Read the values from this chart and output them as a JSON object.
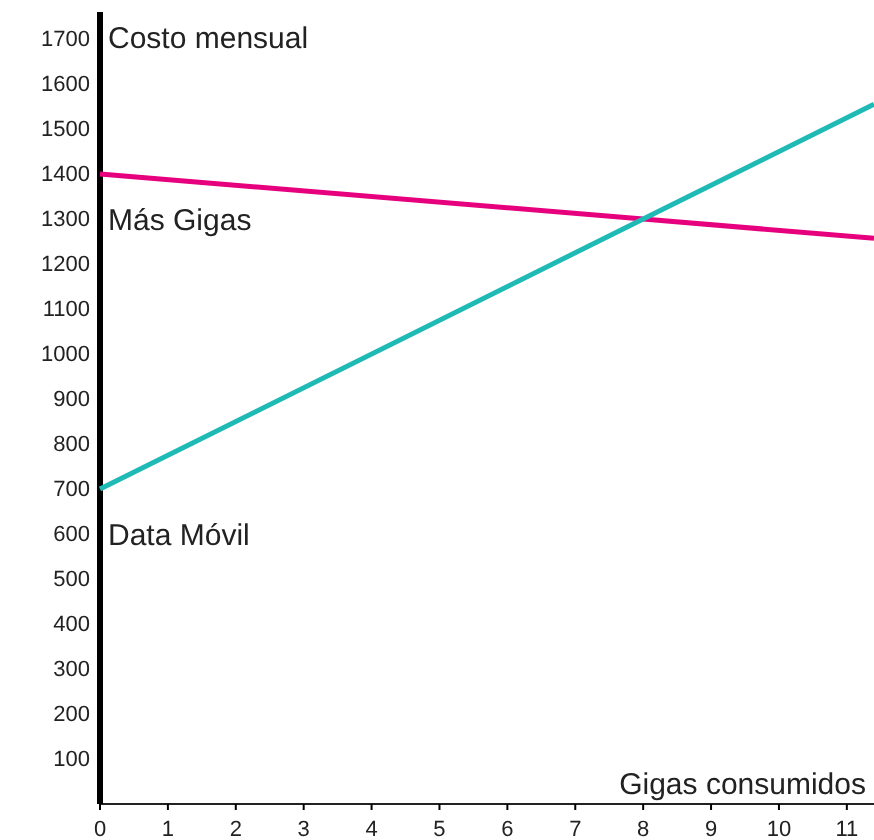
{
  "chart_data": {
    "type": "line",
    "xlabel": "Gigas consumidos",
    "ylabel": "Costo mensual",
    "x": [
      0,
      8,
      11.4
    ],
    "series": [
      {
        "name": "Más Gigas",
        "color": "#e6007e",
        "values": [
          1400,
          1300,
          1257
        ]
      },
      {
        "name": "Data Móvil",
        "color": "#1fbab5",
        "values": [
          700,
          1300,
          1555
        ]
      }
    ],
    "xlim": [
      0,
      11.4
    ],
    "xticks": [
      0,
      1,
      2,
      3,
      4,
      5,
      6,
      7,
      8,
      9,
      10,
      11
    ],
    "ylim": [
      0,
      1760
    ],
    "yticks": [
      100,
      200,
      300,
      400,
      500,
      600,
      700,
      800,
      900,
      1000,
      1100,
      1200,
      1300,
      1400,
      1500,
      1600,
      1700
    ],
    "grid": false,
    "marker": "none",
    "line_style": "solid"
  }
}
